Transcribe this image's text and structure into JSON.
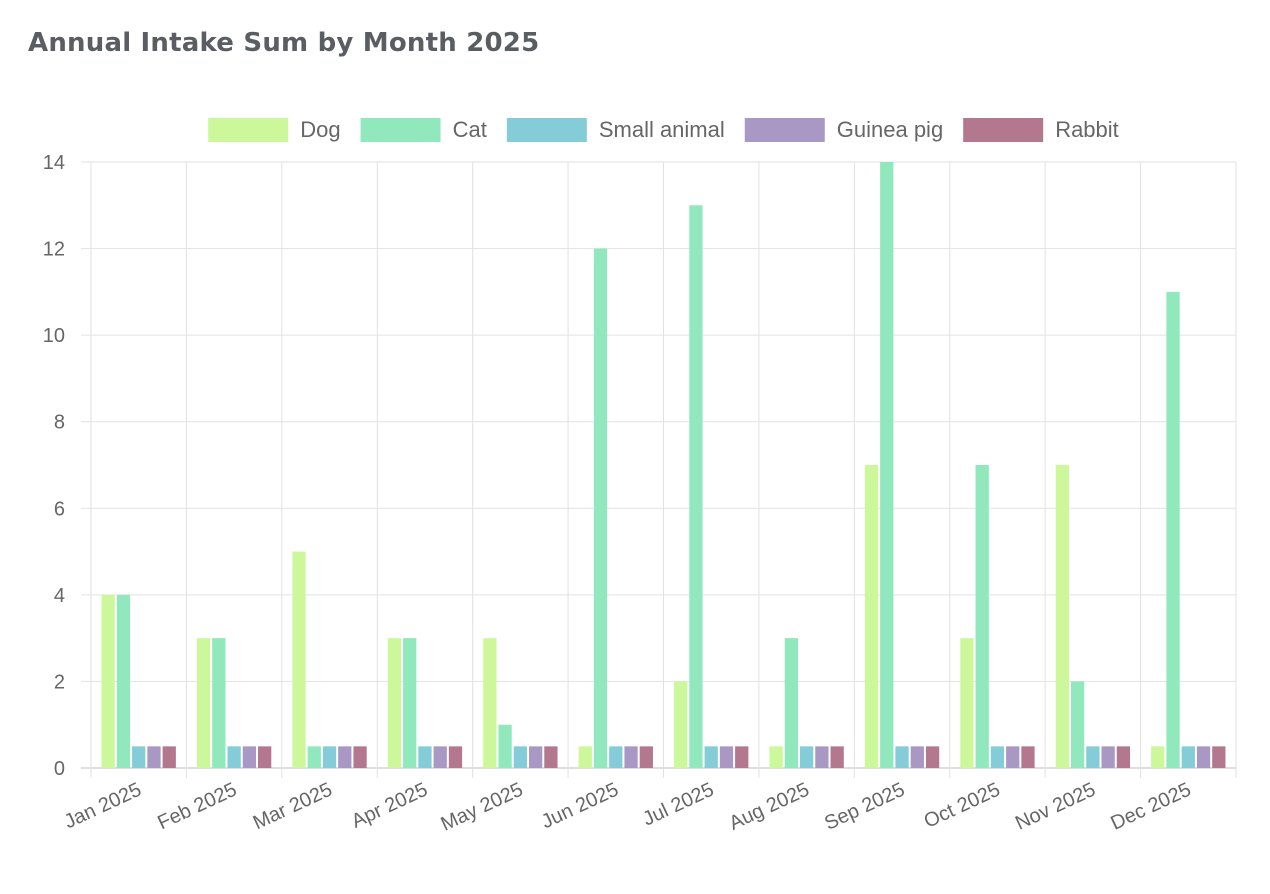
{
  "page": {
    "title": "Annual Intake Sum by Month 2025"
  },
  "chart_data": {
    "type": "bar",
    "title": "Annual Intake Sum by Month 2025",
    "xlabel": "",
    "ylabel": "",
    "ylim": [
      0,
      14
    ],
    "yticks": [
      0,
      2,
      4,
      6,
      8,
      10,
      12,
      14
    ],
    "grid": true,
    "legend_position": "top",
    "categories": [
      "Jan 2025",
      "Feb 2025",
      "Mar 2025",
      "Apr 2025",
      "May 2025",
      "Jun 2025",
      "Jul 2025",
      "Aug 2025",
      "Sep 2025",
      "Oct 2025",
      "Nov 2025",
      "Dec 2025"
    ],
    "series": [
      {
        "name": "Dog",
        "color": "#ccf89b",
        "values": [
          4,
          3,
          5,
          3,
          3,
          0.5,
          2,
          0.5,
          7,
          3,
          7,
          0.5
        ]
      },
      {
        "name": "Cat",
        "color": "#90e8bc",
        "values": [
          4,
          3,
          0.5,
          3,
          1,
          12,
          13,
          3,
          14,
          7,
          2,
          11
        ]
      },
      {
        "name": "Small animal",
        "color": "#84ccd8",
        "values": [
          0.5,
          0.5,
          0.5,
          0.5,
          0.5,
          0.5,
          0.5,
          0.5,
          0.5,
          0.5,
          0.5,
          0.5
        ]
      },
      {
        "name": "Guinea pig",
        "color": "#aa98c4",
        "values": [
          0.5,
          0.5,
          0.5,
          0.5,
          0.5,
          0.5,
          0.5,
          0.5,
          0.5,
          0.5,
          0.5,
          0.5
        ]
      },
      {
        "name": "Rabbit",
        "color": "#b3788e",
        "values": [
          0.5,
          0.5,
          0.5,
          0.5,
          0.5,
          0.5,
          0.5,
          0.5,
          0.5,
          0.5,
          0.5,
          0.5
        ]
      }
    ]
  }
}
